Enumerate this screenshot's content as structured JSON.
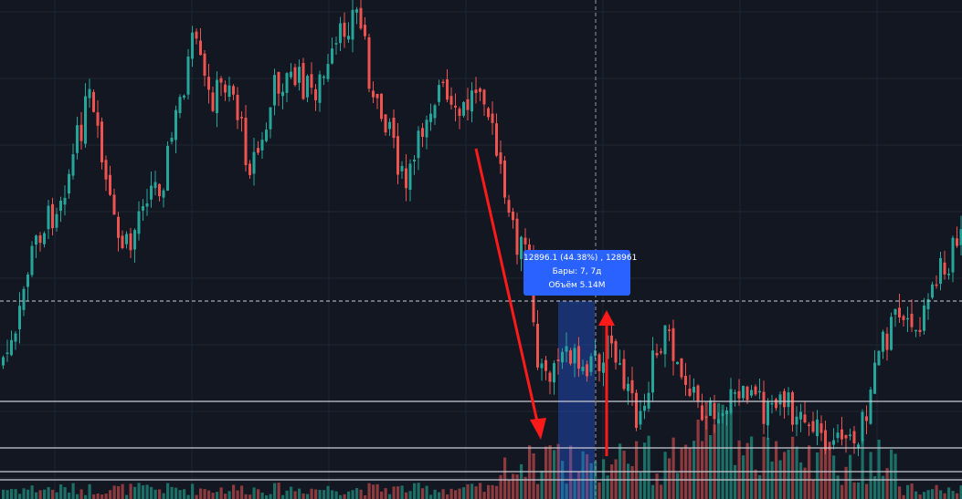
{
  "chart": {
    "background": "#131722",
    "up_color": "#26a69a",
    "down_color": "#ef5350",
    "volume_up_color": "#1b6f66",
    "volume_down_color": "#8c3a3d",
    "grid_color": "#1e2433",
    "line_color": "#c9ccd4",
    "arrow_color": "#ff1a1a",
    "measure_fill": "#2962ff"
  },
  "measure_tooltip": {
    "line1": "12896.1 (44.38%) , 128961",
    "line2": "Бары: 7, 7д",
    "line3": "Объём 5.14M"
  }
}
